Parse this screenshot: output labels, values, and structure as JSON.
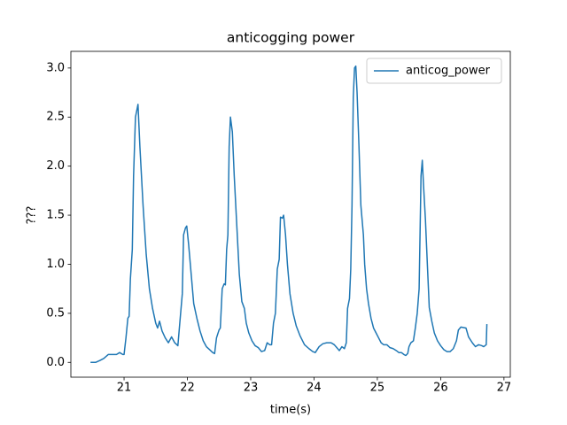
{
  "chart_data": {
    "type": "line",
    "title": "anticogging power",
    "xlabel": "time(s)",
    "ylabel": "???",
    "x": [
      20.47,
      20.55,
      20.62,
      20.68,
      20.75,
      20.82,
      20.88,
      20.93,
      20.98,
      21.0,
      21.03,
      21.06,
      21.08,
      21.1,
      21.13,
      21.15,
      21.18,
      21.22,
      21.25,
      21.3,
      21.35,
      21.4,
      21.45,
      21.5,
      21.53,
      21.56,
      21.6,
      21.65,
      21.7,
      21.75,
      21.8,
      21.85,
      21.88,
      21.92,
      21.94,
      21.97,
      21.99,
      22.02,
      22.06,
      22.1,
      22.15,
      22.2,
      22.25,
      22.3,
      22.35,
      22.4,
      22.43,
      22.46,
      22.5,
      22.52,
      22.55,
      22.58,
      22.6,
      22.62,
      22.64,
      22.66,
      22.68,
      22.71,
      22.74,
      22.78,
      22.82,
      22.86,
      22.9,
      22.93,
      22.97,
      23.02,
      23.07,
      23.12,
      23.17,
      23.22,
      23.26,
      23.3,
      23.33,
      23.36,
      23.39,
      23.42,
      23.45,
      23.47,
      23.5,
      23.52,
      23.55,
      23.58,
      23.62,
      23.67,
      23.72,
      23.78,
      23.85,
      23.92,
      23.98,
      24.02,
      24.08,
      24.14,
      24.2,
      24.27,
      24.32,
      24.36,
      24.4,
      24.44,
      24.48,
      24.51,
      24.53,
      24.56,
      24.58,
      24.6,
      24.62,
      24.64,
      24.66,
      24.68,
      24.71,
      24.74,
      24.78,
      24.8,
      24.83,
      24.86,
      24.9,
      24.94,
      24.98,
      25.02,
      25.06,
      25.1,
      25.15,
      25.2,
      25.25,
      25.3,
      25.34,
      25.38,
      25.42,
      25.45,
      25.48,
      25.5,
      25.53,
      25.57,
      25.6,
      25.63,
      25.66,
      25.69,
      25.71,
      25.73,
      25.76,
      25.79,
      25.82,
      25.86,
      25.9,
      25.95,
      26.0,
      26.05,
      26.1,
      26.15,
      26.2,
      26.25,
      26.28,
      26.32,
      26.4,
      26.44,
      26.5,
      26.55,
      26.6,
      26.65,
      26.68,
      26.72,
      26.73
    ],
    "series": [
      {
        "name": "anticog_power",
        "color": "#1f77b4",
        "values": [
          0,
          0,
          0.02,
          0.04,
          0.08,
          0.08,
          0.08,
          0.1,
          0.08,
          0.08,
          0.25,
          0.45,
          0.47,
          0.85,
          1.15,
          1.9,
          2.5,
          2.63,
          2.2,
          1.6,
          1.1,
          0.75,
          0.55,
          0.4,
          0.35,
          0.42,
          0.32,
          0.25,
          0.2,
          0.26,
          0.2,
          0.17,
          0.4,
          0.7,
          1.3,
          1.37,
          1.39,
          1.2,
          0.9,
          0.6,
          0.45,
          0.32,
          0.22,
          0.16,
          0.13,
          0.1,
          0.09,
          0.25,
          0.33,
          0.35,
          0.75,
          0.8,
          0.79,
          1.15,
          1.3,
          2.2,
          2.5,
          2.35,
          1.9,
          1.4,
          0.9,
          0.62,
          0.55,
          0.4,
          0.3,
          0.22,
          0.17,
          0.15,
          0.11,
          0.12,
          0.2,
          0.18,
          0.18,
          0.4,
          0.5,
          0.95,
          1.05,
          1.48,
          1.47,
          1.5,
          1.3,
          1.0,
          0.7,
          0.5,
          0.37,
          0.27,
          0.18,
          0.14,
          0.11,
          0.1,
          0.16,
          0.19,
          0.2,
          0.2,
          0.18,
          0.15,
          0.12,
          0.16,
          0.14,
          0.2,
          0.55,
          0.65,
          0.95,
          1.6,
          2.7,
          3.0,
          3.02,
          2.75,
          2.2,
          1.6,
          1.3,
          1.0,
          0.75,
          0.6,
          0.45,
          0.35,
          0.3,
          0.25,
          0.2,
          0.18,
          0.18,
          0.15,
          0.14,
          0.12,
          0.1,
          0.1,
          0.08,
          0.07,
          0.09,
          0.16,
          0.2,
          0.22,
          0.35,
          0.5,
          0.75,
          1.9,
          2.06,
          1.8,
          1.45,
          1.0,
          0.56,
          0.42,
          0.3,
          0.22,
          0.17,
          0.13,
          0.11,
          0.11,
          0.14,
          0.22,
          0.33,
          0.36,
          0.35,
          0.26,
          0.2,
          0.16,
          0.18,
          0.17,
          0.16,
          0.18,
          0.39
        ]
      }
    ],
    "xlim": [
      20.16,
      27.1
    ],
    "ylim": [
      -0.151,
      3.17
    ],
    "xticks": [
      21,
      22,
      23,
      24,
      25,
      26,
      27
    ],
    "yticks": [
      {
        "value": 0,
        "label": "0.0"
      },
      0.5,
      {
        "value": 1,
        "label": "1.0"
      },
      1.5,
      {
        "value": 2,
        "label": "2.0"
      },
      2.5,
      {
        "value": 3,
        "label": "3.0"
      }
    ],
    "legend": "upper right"
  }
}
